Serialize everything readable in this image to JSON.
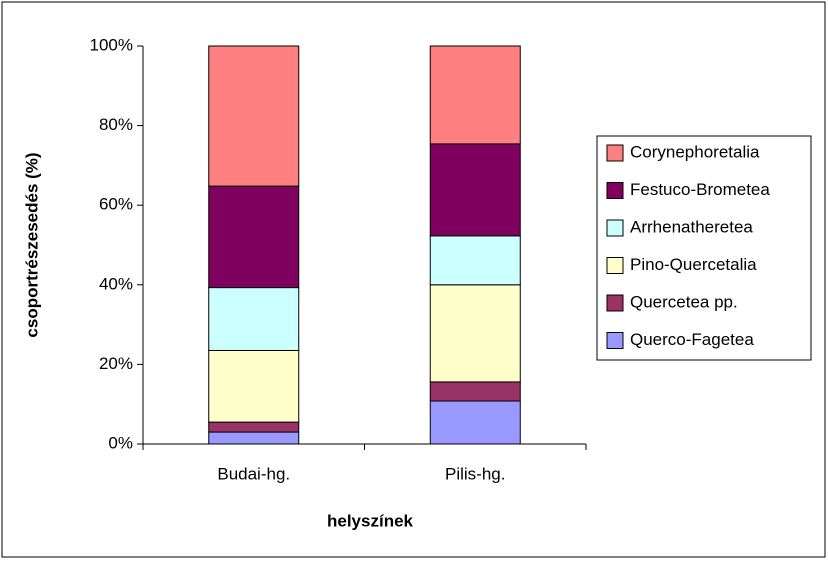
{
  "chart_data": {
    "type": "stacked_bar",
    "x_label": "helyszínek",
    "y_label": "csoportrészesedés (%)",
    "categories": [
      "Budai-hg.",
      "Pilis-hg."
    ],
    "series": [
      {
        "name": "Querco-Fagetea",
        "color": "#9999ff",
        "values": [
          3,
          10.8
        ]
      },
      {
        "name": "Quercetea pp.",
        "color": "#993366",
        "values": [
          2.5,
          4.8
        ]
      },
      {
        "name": "Pino-Quercetalia",
        "color": "#ffffcc",
        "values": [
          18,
          24.4
        ]
      },
      {
        "name": "Arrhenatheretea",
        "color": "#ccffff",
        "values": [
          15.8,
          12.3
        ]
      },
      {
        "name": "Festuco-Brometea",
        "color": "#800060",
        "values": [
          25.5,
          23.1
        ]
      },
      {
        "name": "Corynephoretalia",
        "color": "#ff8080",
        "values": [
          35.2,
          24.6
        ]
      }
    ],
    "ylim": [
      0,
      100
    ],
    "yticks": [
      {
        "value": 0,
        "label": "0%"
      },
      {
        "value": 20,
        "label": "20%"
      },
      {
        "value": 40,
        "label": "40%"
      },
      {
        "value": 60,
        "label": "60%"
      },
      {
        "value": 80,
        "label": "80%"
      },
      {
        "value": 100,
        "label": "100%"
      }
    ],
    "legend": "right"
  }
}
